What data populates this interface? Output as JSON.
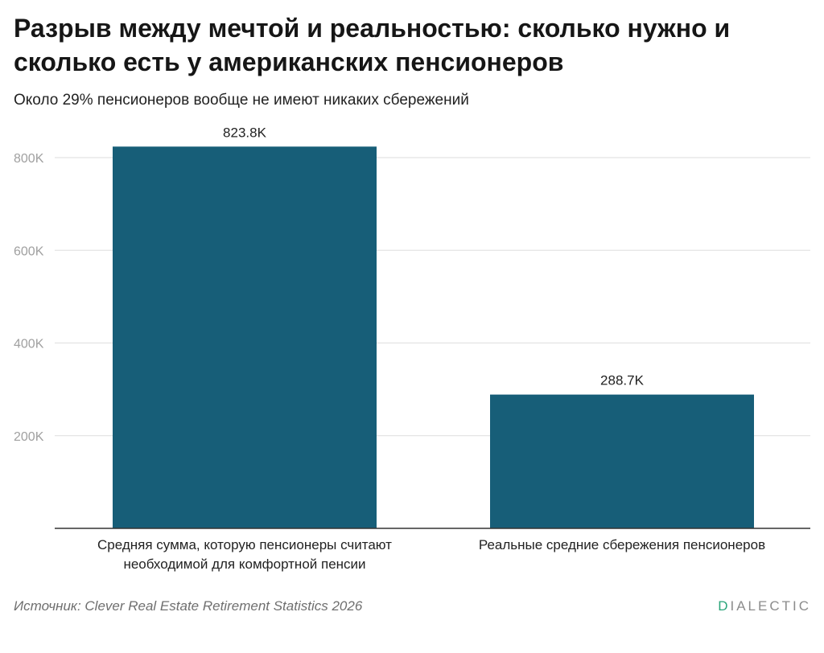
{
  "title": "Разрыв между мечтой и реальностью: сколько нужно и сколько есть у американских пенсионеров",
  "subtitle": "Около 29% пенсионеров вообще не имеют никаких сбережений",
  "source": "Источник: Clever Real Estate Retirement Statistics 2026",
  "logo": {
    "accent_letter": "D",
    "rest": "IALECTIC",
    "accent_color": "#2aa57a"
  },
  "colors": {
    "bar": "#175e78",
    "grid": "#dedede",
    "axis": "#333333",
    "tick_label": "#a0a0a0",
    "value_label": "#222222"
  },
  "chart_data": {
    "type": "bar",
    "title": "Разрыв между мечтой и реальностью: сколько нужно и сколько есть у американских пенсионеров",
    "subtitle": "Около 29% пенсионеров вообще не имеют никаких сбережений",
    "categories": [
      [
        "Средняя сумма, которую пенсионеры считают",
        "необходимой для комфортной пенсии"
      ],
      [
        "Реальные средние сбережения пенсионеров"
      ]
    ],
    "values": [
      823800,
      288700
    ],
    "value_labels": [
      "823.8K",
      "288.7K"
    ],
    "yticks": [
      200000,
      400000,
      600000,
      800000
    ],
    "ytick_labels": [
      "200K",
      "400K",
      "600K",
      "800K"
    ],
    "ylim": [
      0,
      850000
    ],
    "grid": true,
    "xlabel": "",
    "ylabel": ""
  }
}
